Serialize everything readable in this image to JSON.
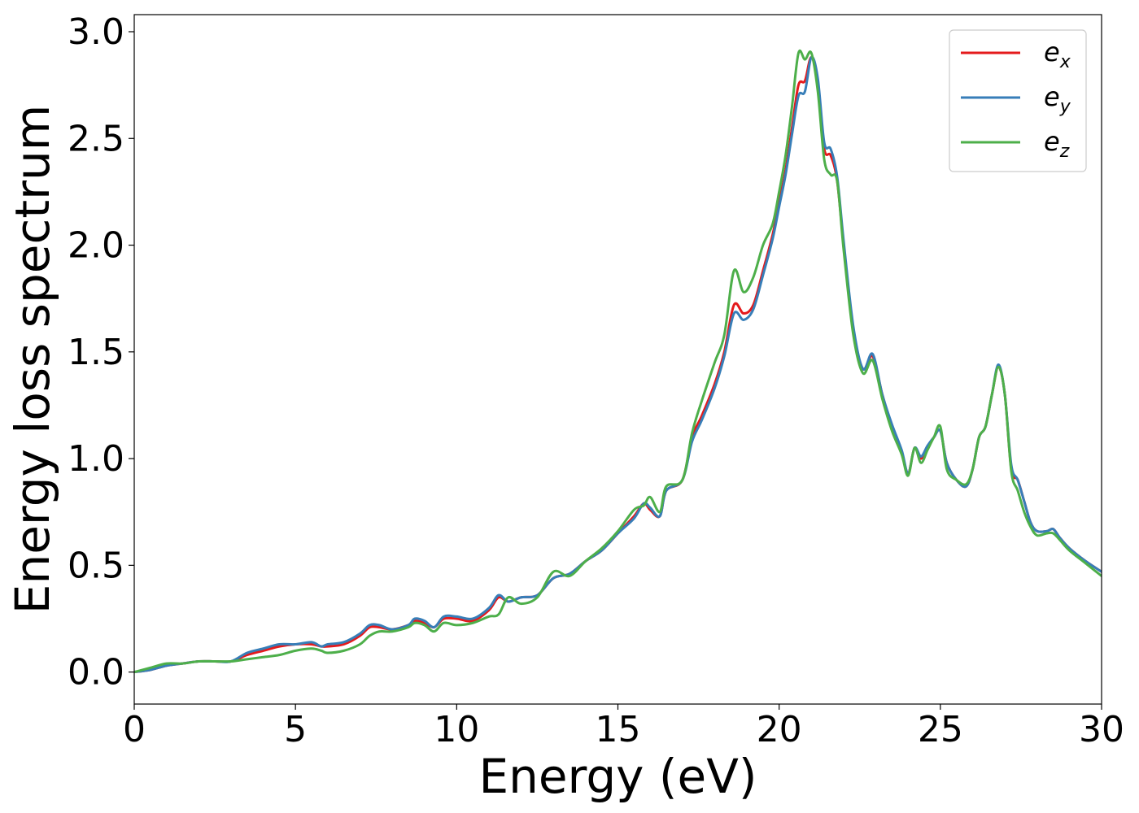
{
  "chart_data": {
    "type": "line",
    "title": "",
    "xlabel": "Energy (eV)",
    "ylabel": "Energy loss spectrum",
    "xlim": [
      0,
      30
    ],
    "ylim": [
      -0.15,
      3.08
    ],
    "xticks": [
      0,
      5,
      10,
      15,
      20,
      25,
      30
    ],
    "yticks": [
      0.0,
      0.5,
      1.0,
      1.5,
      2.0,
      2.5,
      3.0
    ],
    "xtick_labels": [
      "0",
      "5",
      "10",
      "15",
      "20",
      "25",
      "30"
    ],
    "ytick_labels": [
      "0.0",
      "0.5",
      "1.0",
      "1.5",
      "2.0",
      "2.5",
      "3.0"
    ],
    "grid": false,
    "legend_position": "top-right",
    "series": [
      {
        "name": "e_x",
        "legend_base": "e",
        "legend_sub": "x",
        "color": "#e41a1c",
        "x": [
          0,
          0.5,
          1,
          1.5,
          2,
          2.5,
          3,
          3.5,
          4,
          4.5,
          5,
          5.5,
          5.8,
          6,
          6.5,
          7,
          7.3,
          7.6,
          8,
          8.5,
          8.7,
          9,
          9.3,
          9.6,
          10,
          10.5,
          11,
          11.3,
          11.6,
          12,
          12.5,
          13,
          13.5,
          14,
          14.5,
          15,
          15.5,
          15.8,
          16,
          16.3,
          16.5,
          17,
          17.3,
          17.6,
          18,
          18.3,
          18.6,
          18.9,
          19.2,
          19.5,
          19.8,
          20,
          20.2,
          20.4,
          20.6,
          20.8,
          21,
          21.2,
          21.4,
          21.6,
          21.8,
          22,
          22.3,
          22.6,
          22.9,
          23.2,
          23.5,
          23.8,
          24,
          24.2,
          24.4,
          24.6,
          24.8,
          25,
          25.2,
          25.5,
          25.8,
          26,
          26.2,
          26.4,
          26.6,
          26.8,
          27,
          27.2,
          27.4,
          27.6,
          27.8,
          28,
          28.3,
          28.5,
          28.7,
          29,
          29.5,
          30
        ],
        "y": [
          0.0,
          0.01,
          0.03,
          0.04,
          0.05,
          0.05,
          0.05,
          0.08,
          0.1,
          0.12,
          0.13,
          0.13,
          0.12,
          0.12,
          0.13,
          0.17,
          0.21,
          0.21,
          0.2,
          0.22,
          0.24,
          0.23,
          0.21,
          0.25,
          0.25,
          0.24,
          0.29,
          0.35,
          0.33,
          0.35,
          0.36,
          0.44,
          0.46,
          0.52,
          0.57,
          0.65,
          0.73,
          0.79,
          0.76,
          0.73,
          0.85,
          0.9,
          1.1,
          1.2,
          1.35,
          1.5,
          1.72,
          1.68,
          1.72,
          1.88,
          2.05,
          2.2,
          2.35,
          2.55,
          2.75,
          2.77,
          2.88,
          2.75,
          2.45,
          2.42,
          2.3,
          2.0,
          1.6,
          1.42,
          1.48,
          1.3,
          1.15,
          1.03,
          0.93,
          1.05,
          1.0,
          1.05,
          1.1,
          1.13,
          0.98,
          0.9,
          0.87,
          0.95,
          1.1,
          1.15,
          1.3,
          1.43,
          1.3,
          0.95,
          0.9,
          0.8,
          0.7,
          0.66,
          0.66,
          0.67,
          0.63,
          0.58,
          0.52,
          0.47
        ]
      },
      {
        "name": "e_y",
        "legend_base": "e",
        "legend_sub": "y",
        "color": "#377eb8",
        "x": [
          0,
          0.5,
          1,
          1.5,
          2,
          2.5,
          3,
          3.5,
          4,
          4.5,
          5,
          5.5,
          5.8,
          6,
          6.5,
          7,
          7.3,
          7.6,
          8,
          8.5,
          8.7,
          9,
          9.3,
          9.6,
          10,
          10.5,
          11,
          11.3,
          11.6,
          12,
          12.5,
          13,
          13.5,
          14,
          14.5,
          15,
          15.5,
          15.8,
          16,
          16.3,
          16.5,
          17,
          17.3,
          17.6,
          18,
          18.3,
          18.6,
          18.9,
          19.2,
          19.5,
          19.8,
          20,
          20.2,
          20.4,
          20.6,
          20.8,
          21,
          21.2,
          21.4,
          21.6,
          21.8,
          22,
          22.3,
          22.6,
          22.9,
          23.2,
          23.5,
          23.8,
          24,
          24.2,
          24.4,
          24.6,
          24.8,
          25,
          25.2,
          25.5,
          25.8,
          26,
          26.2,
          26.4,
          26.6,
          26.8,
          27,
          27.2,
          27.4,
          27.6,
          27.8,
          28,
          28.3,
          28.5,
          28.7,
          29,
          29.5,
          30
        ],
        "y": [
          0.0,
          0.01,
          0.03,
          0.04,
          0.05,
          0.05,
          0.05,
          0.09,
          0.11,
          0.13,
          0.13,
          0.14,
          0.12,
          0.13,
          0.14,
          0.18,
          0.22,
          0.22,
          0.2,
          0.22,
          0.25,
          0.24,
          0.21,
          0.26,
          0.26,
          0.25,
          0.3,
          0.36,
          0.33,
          0.35,
          0.36,
          0.44,
          0.46,
          0.52,
          0.57,
          0.65,
          0.72,
          0.79,
          0.77,
          0.73,
          0.85,
          0.9,
          1.08,
          1.18,
          1.33,
          1.48,
          1.68,
          1.65,
          1.7,
          1.86,
          2.03,
          2.18,
          2.33,
          2.52,
          2.7,
          2.72,
          2.88,
          2.78,
          2.48,
          2.45,
          2.32,
          2.02,
          1.62,
          1.42,
          1.49,
          1.3,
          1.16,
          1.04,
          0.93,
          1.05,
          1.01,
          1.06,
          1.1,
          1.13,
          0.98,
          0.9,
          0.87,
          0.95,
          1.1,
          1.15,
          1.3,
          1.44,
          1.3,
          0.97,
          0.9,
          0.8,
          0.7,
          0.66,
          0.66,
          0.67,
          0.63,
          0.58,
          0.52,
          0.47
        ]
      },
      {
        "name": "e_z",
        "legend_base": "e",
        "legend_sub": "z",
        "color": "#4daf4a",
        "x": [
          0,
          0.5,
          1,
          1.5,
          2,
          2.5,
          3,
          3.5,
          4,
          4.5,
          5,
          5.5,
          5.8,
          6,
          6.5,
          7,
          7.3,
          7.6,
          8,
          8.5,
          8.7,
          9,
          9.3,
          9.6,
          10,
          10.5,
          11,
          11.3,
          11.6,
          12,
          12.5,
          13,
          13.5,
          14,
          14.5,
          15,
          15.5,
          15.8,
          16,
          16.3,
          16.5,
          17,
          17.3,
          17.6,
          18,
          18.3,
          18.6,
          18.9,
          19.2,
          19.5,
          19.8,
          20,
          20.2,
          20.4,
          20.6,
          20.8,
          21,
          21.2,
          21.4,
          21.6,
          21.8,
          22,
          22.3,
          22.6,
          22.9,
          23.2,
          23.5,
          23.8,
          24,
          24.2,
          24.4,
          24.6,
          24.8,
          25,
          25.2,
          25.5,
          25.8,
          26,
          26.2,
          26.4,
          26.6,
          26.8,
          27,
          27.2,
          27.4,
          27.6,
          27.8,
          28,
          28.3,
          28.5,
          28.7,
          29,
          29.5,
          30
        ],
        "y": [
          0.0,
          0.02,
          0.04,
          0.04,
          0.05,
          0.05,
          0.05,
          0.06,
          0.07,
          0.08,
          0.1,
          0.11,
          0.1,
          0.09,
          0.1,
          0.13,
          0.17,
          0.19,
          0.19,
          0.21,
          0.23,
          0.22,
          0.19,
          0.23,
          0.22,
          0.23,
          0.26,
          0.27,
          0.35,
          0.32,
          0.35,
          0.47,
          0.45,
          0.52,
          0.58,
          0.66,
          0.76,
          0.78,
          0.82,
          0.75,
          0.87,
          0.9,
          1.12,
          1.27,
          1.45,
          1.58,
          1.88,
          1.78,
          1.85,
          2.0,
          2.1,
          2.25,
          2.42,
          2.65,
          2.9,
          2.87,
          2.9,
          2.72,
          2.4,
          2.33,
          2.3,
          1.98,
          1.58,
          1.4,
          1.46,
          1.28,
          1.13,
          1.02,
          0.92,
          1.05,
          0.98,
          1.04,
          1.1,
          1.15,
          0.95,
          0.9,
          0.88,
          0.95,
          1.1,
          1.15,
          1.3,
          1.43,
          1.3,
          0.94,
          0.85,
          0.75,
          0.68,
          0.64,
          0.65,
          0.65,
          0.62,
          0.57,
          0.51,
          0.45
        ]
      }
    ]
  }
}
